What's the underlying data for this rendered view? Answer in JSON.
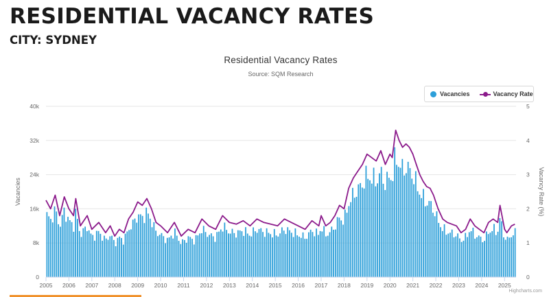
{
  "page": {
    "title": "RESIDENTIAL VACANCY RATES",
    "subtitle": "CITY: SYDNEY"
  },
  "colors": {
    "bars": "#2c9fd9",
    "line": "#8b1a8b",
    "grid": "#e6e6e6",
    "accent": "#f0912c"
  },
  "chart_data": {
    "type": "bar",
    "title": "Residential Vacancy Rates",
    "subtitle": "Source: SQM Research",
    "credits": "Highcharts.com",
    "x": {
      "labels": [
        "2005",
        "2006",
        "2007",
        "2008",
        "2009",
        "2010",
        "2011",
        "2012",
        "2013",
        "2014",
        "2015",
        "2016",
        "2017",
        "2018",
        "2019",
        "2020",
        "2021",
        "2022",
        "2023",
        "2024",
        "2025"
      ],
      "range": [
        2005.0,
        2025.5
      ]
    },
    "y_left": {
      "label": "Vacancies",
      "range": [
        0,
        40000
      ],
      "ticks": [
        "0",
        "8k",
        "16k",
        "24k",
        "32k",
        "40k"
      ]
    },
    "y_right": {
      "label": "Vacancy Rate (%)",
      "range": [
        0,
        5
      ],
      "ticks": [
        "0",
        "1",
        "2",
        "3",
        "4",
        "5"
      ]
    },
    "legend": [
      "Vacancies",
      "Vacancy Rate"
    ],
    "series": [
      {
        "name": "Vacancy Rate",
        "type": "line",
        "unit": "%",
        "points": [
          [
            2005.0,
            2.25
          ],
          [
            2005.2,
            2.0
          ],
          [
            2005.4,
            2.4
          ],
          [
            2005.6,
            1.8
          ],
          [
            2005.8,
            2.35
          ],
          [
            2006.0,
            2.0
          ],
          [
            2006.2,
            1.8
          ],
          [
            2006.3,
            2.3
          ],
          [
            2006.5,
            1.5
          ],
          [
            2006.8,
            1.8
          ],
          [
            2007.0,
            1.4
          ],
          [
            2007.3,
            1.6
          ],
          [
            2007.6,
            1.3
          ],
          [
            2007.8,
            1.5
          ],
          [
            2008.0,
            1.2
          ],
          [
            2008.2,
            1.4
          ],
          [
            2008.4,
            1.3
          ],
          [
            2008.6,
            1.7
          ],
          [
            2008.8,
            1.9
          ],
          [
            2009.0,
            2.2
          ],
          [
            2009.2,
            2.1
          ],
          [
            2009.4,
            2.3
          ],
          [
            2009.6,
            2.0
          ],
          [
            2009.8,
            1.6
          ],
          [
            2010.0,
            1.5
          ],
          [
            2010.3,
            1.3
          ],
          [
            2010.6,
            1.6
          ],
          [
            2010.9,
            1.2
          ],
          [
            2011.2,
            1.4
          ],
          [
            2011.5,
            1.3
          ],
          [
            2011.8,
            1.7
          ],
          [
            2012.1,
            1.5
          ],
          [
            2012.4,
            1.4
          ],
          [
            2012.7,
            1.8
          ],
          [
            2013.0,
            1.6
          ],
          [
            2013.3,
            1.55
          ],
          [
            2013.6,
            1.65
          ],
          [
            2013.9,
            1.5
          ],
          [
            2014.2,
            1.7
          ],
          [
            2014.5,
            1.6
          ],
          [
            2014.8,
            1.55
          ],
          [
            2015.1,
            1.5
          ],
          [
            2015.4,
            1.7
          ],
          [
            2015.7,
            1.6
          ],
          [
            2016.0,
            1.5
          ],
          [
            2016.3,
            1.4
          ],
          [
            2016.6,
            1.65
          ],
          [
            2016.9,
            1.5
          ],
          [
            2017.0,
            1.8
          ],
          [
            2017.2,
            1.5
          ],
          [
            2017.4,
            1.6
          ],
          [
            2017.6,
            1.8
          ],
          [
            2017.8,
            2.1
          ],
          [
            2018.0,
            2.0
          ],
          [
            2018.2,
            2.6
          ],
          [
            2018.4,
            2.9
          ],
          [
            2018.6,
            3.1
          ],
          [
            2018.8,
            3.3
          ],
          [
            2019.0,
            3.6
          ],
          [
            2019.2,
            3.5
          ],
          [
            2019.4,
            3.4
          ],
          [
            2019.6,
            3.7
          ],
          [
            2019.8,
            3.3
          ],
          [
            2020.0,
            3.6
          ],
          [
            2020.1,
            3.5
          ],
          [
            2020.25,
            4.3
          ],
          [
            2020.4,
            4.0
          ],
          [
            2020.55,
            3.8
          ],
          [
            2020.7,
            3.9
          ],
          [
            2020.85,
            3.8
          ],
          [
            2021.0,
            3.6
          ],
          [
            2021.15,
            3.3
          ],
          [
            2021.3,
            3.0
          ],
          [
            2021.45,
            2.8
          ],
          [
            2021.6,
            2.65
          ],
          [
            2021.75,
            2.6
          ],
          [
            2021.9,
            2.4
          ],
          [
            2022.1,
            2.0
          ],
          [
            2022.3,
            1.7
          ],
          [
            2022.5,
            1.6
          ],
          [
            2022.7,
            1.55
          ],
          [
            2022.9,
            1.5
          ],
          [
            2023.1,
            1.3
          ],
          [
            2023.3,
            1.4
          ],
          [
            2023.5,
            1.7
          ],
          [
            2023.7,
            1.5
          ],
          [
            2023.9,
            1.4
          ],
          [
            2024.1,
            1.3
          ],
          [
            2024.3,
            1.6
          ],
          [
            2024.5,
            1.7
          ],
          [
            2024.7,
            1.6
          ],
          [
            2024.8,
            2.1
          ],
          [
            2025.0,
            1.4
          ],
          [
            2025.1,
            1.3
          ],
          [
            2025.3,
            1.5
          ],
          [
            2025.45,
            1.55
          ]
        ]
      },
      {
        "name": "Vacancies",
        "type": "bar",
        "unit": "listings",
        "derived_from": "Vacancy Rate",
        "scale": 6600
      }
    ]
  }
}
